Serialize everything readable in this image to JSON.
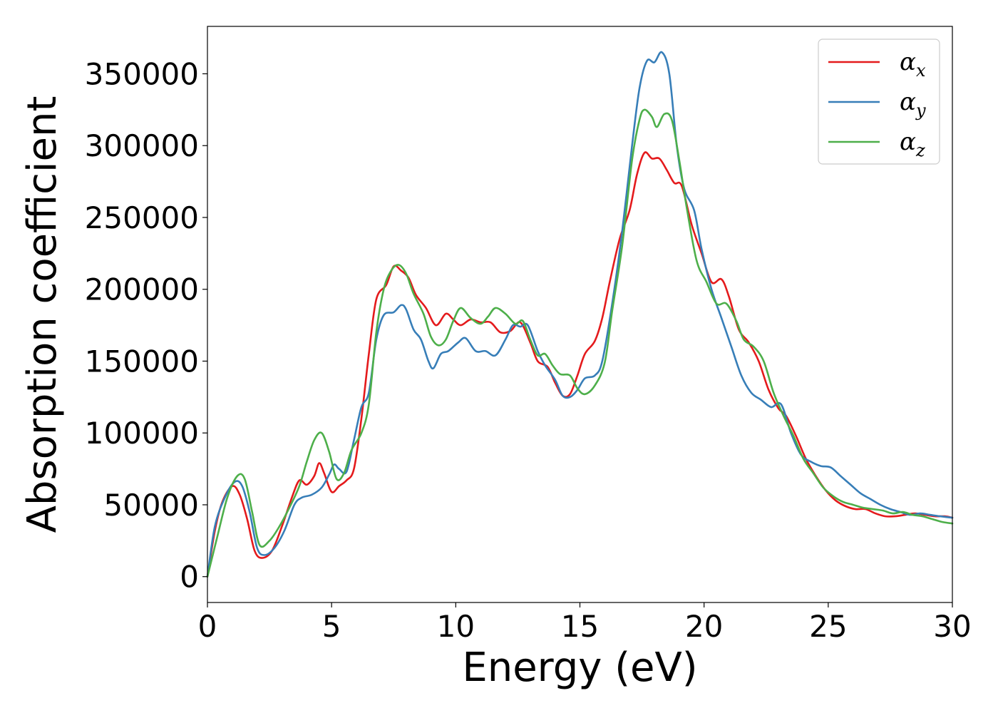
{
  "chart_data": {
    "type": "line",
    "xlabel": "Energy (eV)",
    "ylabel": "Absorption coefficient",
    "xlim": [
      0,
      30
    ],
    "ylim": [
      -18000,
      383000
    ],
    "x_ticks": [
      0,
      5,
      10,
      15,
      20,
      25,
      30
    ],
    "y_ticks": [
      0,
      50000,
      100000,
      150000,
      200000,
      250000,
      300000,
      350000
    ],
    "grid": false,
    "legend_position": "top-right",
    "series": [
      {
        "name": "α",
        "subscript": "x",
        "color": "#e41a1c",
        "points": [
          [
            0,
            0
          ],
          [
            0.3,
            32000
          ],
          [
            0.6,
            52000
          ],
          [
            1.0,
            63000
          ],
          [
            1.3,
            57000
          ],
          [
            1.6,
            40000
          ],
          [
            1.9,
            18000
          ],
          [
            2.2,
            13000
          ],
          [
            2.6,
            18000
          ],
          [
            3.0,
            35000
          ],
          [
            3.4,
            55000
          ],
          [
            3.7,
            67000
          ],
          [
            4.0,
            64000
          ],
          [
            4.3,
            70000
          ],
          [
            4.5,
            79000
          ],
          [
            4.7,
            72000
          ],
          [
            5.0,
            59000
          ],
          [
            5.3,
            63000
          ],
          [
            5.6,
            67000
          ],
          [
            5.9,
            75000
          ],
          [
            6.2,
            110000
          ],
          [
            6.5,
            155000
          ],
          [
            6.8,
            193000
          ],
          [
            7.2,
            203000
          ],
          [
            7.5,
            216000
          ],
          [
            7.8,
            213000
          ],
          [
            8.1,
            208000
          ],
          [
            8.4,
            196000
          ],
          [
            8.8,
            187000
          ],
          [
            9.2,
            175000
          ],
          [
            9.6,
            183000
          ],
          [
            9.9,
            179000
          ],
          [
            10.2,
            175000
          ],
          [
            10.6,
            179000
          ],
          [
            11.0,
            177000
          ],
          [
            11.4,
            177000
          ],
          [
            11.8,
            170000
          ],
          [
            12.2,
            171000
          ],
          [
            12.6,
            177000
          ],
          [
            13.0,
            163000
          ],
          [
            13.3,
            150000
          ],
          [
            13.7,
            146000
          ],
          [
            14.0,
            135000
          ],
          [
            14.3,
            126000
          ],
          [
            14.6,
            127000
          ],
          [
            14.9,
            140000
          ],
          [
            15.2,
            155000
          ],
          [
            15.6,
            164000
          ],
          [
            15.9,
            180000
          ],
          [
            16.2,
            205000
          ],
          [
            16.6,
            235000
          ],
          [
            17.0,
            255000
          ],
          [
            17.3,
            280000
          ],
          [
            17.6,
            295000
          ],
          [
            17.9,
            291000
          ],
          [
            18.2,
            291000
          ],
          [
            18.5,
            283000
          ],
          [
            18.8,
            274000
          ],
          [
            19.1,
            272000
          ],
          [
            19.5,
            245000
          ],
          [
            19.9,
            225000
          ],
          [
            20.3,
            205000
          ],
          [
            20.7,
            207000
          ],
          [
            21.0,
            195000
          ],
          [
            21.4,
            172000
          ],
          [
            21.8,
            163000
          ],
          [
            22.2,
            150000
          ],
          [
            22.6,
            130000
          ],
          [
            23.0,
            117000
          ],
          [
            23.3,
            112000
          ],
          [
            23.7,
            98000
          ],
          [
            24.1,
            82000
          ],
          [
            24.5,
            70000
          ],
          [
            24.9,
            60000
          ],
          [
            25.3,
            53000
          ],
          [
            25.7,
            49000
          ],
          [
            26.1,
            47000
          ],
          [
            26.5,
            47000
          ],
          [
            26.9,
            44000
          ],
          [
            27.3,
            42000
          ],
          [
            27.7,
            42000
          ],
          [
            28.1,
            43000
          ],
          [
            28.5,
            44000
          ],
          [
            28.9,
            43000
          ],
          [
            29.3,
            42000
          ],
          [
            29.7,
            42000
          ],
          [
            30.0,
            41000
          ]
        ]
      },
      {
        "name": "α",
        "subscript": "y",
        "color": "#377eb8",
        "points": [
          [
            0,
            0
          ],
          [
            0.3,
            35000
          ],
          [
            0.7,
            55000
          ],
          [
            1.1,
            66000
          ],
          [
            1.4,
            63000
          ],
          [
            1.7,
            45000
          ],
          [
            2.0,
            20000
          ],
          [
            2.3,
            15000
          ],
          [
            2.7,
            20000
          ],
          [
            3.1,
            32000
          ],
          [
            3.5,
            50000
          ],
          [
            3.8,
            55000
          ],
          [
            4.2,
            57000
          ],
          [
            4.6,
            62000
          ],
          [
            4.9,
            71000
          ],
          [
            5.1,
            78000
          ],
          [
            5.3,
            75000
          ],
          [
            5.6,
            73000
          ],
          [
            5.9,
            95000
          ],
          [
            6.2,
            118000
          ],
          [
            6.5,
            128000
          ],
          [
            6.8,
            165000
          ],
          [
            7.1,
            182000
          ],
          [
            7.5,
            184000
          ],
          [
            7.8,
            189000
          ],
          [
            8.0,
            186000
          ],
          [
            8.3,
            172000
          ],
          [
            8.6,
            165000
          ],
          [
            8.9,
            150000
          ],
          [
            9.1,
            145000
          ],
          [
            9.4,
            155000
          ],
          [
            9.7,
            157000
          ],
          [
            10.1,
            163000
          ],
          [
            10.4,
            166000
          ],
          [
            10.8,
            157000
          ],
          [
            11.2,
            157000
          ],
          [
            11.6,
            154000
          ],
          [
            12.0,
            165000
          ],
          [
            12.3,
            175000
          ],
          [
            12.6,
            174000
          ],
          [
            12.9,
            175000
          ],
          [
            13.3,
            157000
          ],
          [
            13.6,
            147000
          ],
          [
            14.0,
            137000
          ],
          [
            14.3,
            126000
          ],
          [
            14.6,
            125000
          ],
          [
            14.9,
            130000
          ],
          [
            15.2,
            138000
          ],
          [
            15.6,
            140000
          ],
          [
            15.9,
            150000
          ],
          [
            16.3,
            190000
          ],
          [
            16.7,
            240000
          ],
          [
            17.1,
            300000
          ],
          [
            17.4,
            340000
          ],
          [
            17.7,
            359000
          ],
          [
            18.0,
            358000
          ],
          [
            18.3,
            365000
          ],
          [
            18.6,
            350000
          ],
          [
            18.9,
            300000
          ],
          [
            19.2,
            270000
          ],
          [
            19.6,
            255000
          ],
          [
            19.9,
            228000
          ],
          [
            20.3,
            200000
          ],
          [
            20.7,
            180000
          ],
          [
            21.1,
            160000
          ],
          [
            21.5,
            140000
          ],
          [
            21.9,
            128000
          ],
          [
            22.3,
            123000
          ],
          [
            22.7,
            118000
          ],
          [
            23.1,
            120000
          ],
          [
            23.5,
            100000
          ],
          [
            23.9,
            85000
          ],
          [
            24.3,
            80000
          ],
          [
            24.7,
            77000
          ],
          [
            25.1,
            76000
          ],
          [
            25.5,
            70000
          ],
          [
            25.9,
            64000
          ],
          [
            26.3,
            58000
          ],
          [
            26.7,
            54000
          ],
          [
            27.1,
            50000
          ],
          [
            27.5,
            47000
          ],
          [
            27.9,
            45000
          ],
          [
            28.3,
            43000
          ],
          [
            28.7,
            44000
          ],
          [
            29.1,
            43000
          ],
          [
            29.5,
            42000
          ],
          [
            30.0,
            41000
          ]
        ]
      },
      {
        "name": "α",
        "subscript": "z",
        "color": "#4daf4a",
        "points": [
          [
            0,
            0
          ],
          [
            0.4,
            28000
          ],
          [
            0.8,
            55000
          ],
          [
            1.2,
            70000
          ],
          [
            1.5,
            68000
          ],
          [
            1.8,
            45000
          ],
          [
            2.1,
            22000
          ],
          [
            2.5,
            25000
          ],
          [
            2.9,
            35000
          ],
          [
            3.3,
            48000
          ],
          [
            3.7,
            63000
          ],
          [
            4.0,
            80000
          ],
          [
            4.3,
            95000
          ],
          [
            4.6,
            100000
          ],
          [
            4.9,
            87000
          ],
          [
            5.2,
            68000
          ],
          [
            5.5,
            72000
          ],
          [
            5.8,
            88000
          ],
          [
            6.2,
            100000
          ],
          [
            6.5,
            120000
          ],
          [
            6.8,
            170000
          ],
          [
            7.1,
            200000
          ],
          [
            7.4,
            213000
          ],
          [
            7.7,
            217000
          ],
          [
            8.0,
            211000
          ],
          [
            8.3,
            197000
          ],
          [
            8.7,
            183000
          ],
          [
            9.0,
            167000
          ],
          [
            9.3,
            161000
          ],
          [
            9.6,
            165000
          ],
          [
            9.9,
            178000
          ],
          [
            10.2,
            187000
          ],
          [
            10.6,
            180000
          ],
          [
            11.0,
            176000
          ],
          [
            11.3,
            181000
          ],
          [
            11.6,
            187000
          ],
          [
            12.0,
            183000
          ],
          [
            12.4,
            176000
          ],
          [
            12.7,
            178000
          ],
          [
            13.0,
            165000
          ],
          [
            13.3,
            154000
          ],
          [
            13.6,
            155000
          ],
          [
            13.9,
            147000
          ],
          [
            14.2,
            141000
          ],
          [
            14.6,
            140000
          ],
          [
            14.9,
            131000
          ],
          [
            15.2,
            127000
          ],
          [
            15.6,
            133000
          ],
          [
            16.0,
            149000
          ],
          [
            16.3,
            185000
          ],
          [
            16.7,
            230000
          ],
          [
            17.1,
            290000
          ],
          [
            17.4,
            318000
          ],
          [
            17.6,
            325000
          ],
          [
            17.9,
            320000
          ],
          [
            18.1,
            313000
          ],
          [
            18.4,
            322000
          ],
          [
            18.7,
            318000
          ],
          [
            19.0,
            290000
          ],
          [
            19.3,
            257000
          ],
          [
            19.7,
            220000
          ],
          [
            20.1,
            205000
          ],
          [
            20.5,
            190000
          ],
          [
            20.9,
            190000
          ],
          [
            21.3,
            178000
          ],
          [
            21.6,
            165000
          ],
          [
            22.0,
            160000
          ],
          [
            22.4,
            150000
          ],
          [
            22.8,
            128000
          ],
          [
            23.2,
            112000
          ],
          [
            23.6,
            98000
          ],
          [
            24.0,
            82000
          ],
          [
            24.4,
            72000
          ],
          [
            24.8,
            62000
          ],
          [
            25.2,
            56000
          ],
          [
            25.6,
            52000
          ],
          [
            26.0,
            50000
          ],
          [
            26.4,
            48000
          ],
          [
            26.8,
            47000
          ],
          [
            27.2,
            46000
          ],
          [
            27.6,
            44000
          ],
          [
            28.0,
            45000
          ],
          [
            28.4,
            43000
          ],
          [
            28.8,
            42000
          ],
          [
            29.2,
            40000
          ],
          [
            29.6,
            38000
          ],
          [
            30.0,
            37000
          ]
        ]
      }
    ]
  }
}
